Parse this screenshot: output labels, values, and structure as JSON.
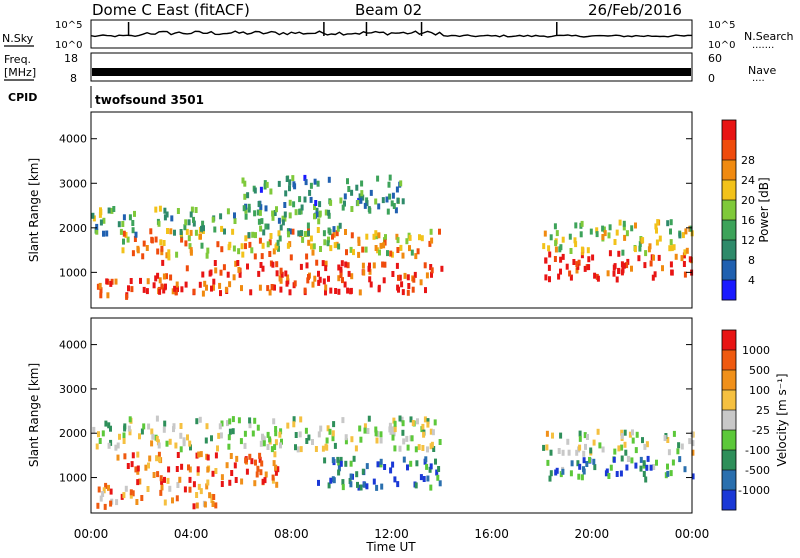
{
  "header": {
    "station": "Dome C East (fitACF)",
    "beam": "Beam 02",
    "date": "26/Feb/2016"
  },
  "noise_panel": {
    "left_label": "N.Sky",
    "right_label": "N.Search",
    "right_dots": "·······",
    "tick_top": "10^5",
    "tick_bottom": "10^0"
  },
  "freq_panel": {
    "left_label_1": "Freq.",
    "left_label_2": "[MHz]",
    "right_label": "Nave",
    "right_dots": "····",
    "left_tick_top": "18",
    "left_tick_bottom": "8",
    "right_tick_top": "60",
    "right_tick_bottom": "0"
  },
  "cpid_panel": {
    "label": "CPID",
    "value": "twofsound 3501"
  },
  "time_axis": {
    "label": "Time UT",
    "ticks": [
      "00:00",
      "04:00",
      "08:00",
      "12:00",
      "16:00",
      "20:00",
      "00:00"
    ]
  },
  "chart_data": [
    {
      "type": "heatmap",
      "quantity": "power",
      "ylabel": "Slant Range [km]",
      "yticks": [
        "1000",
        "2000",
        "3000",
        "4000"
      ],
      "ylim": [
        200,
        4600
      ],
      "xlim_hours": [
        0,
        24
      ],
      "colorbar_label": "Power [dB]",
      "colorbar_ticks": [
        "4",
        "8",
        "12",
        "16",
        "20",
        "24",
        "28"
      ],
      "colorscale": [
        "#1a1aff",
        "#2060b0",
        "#2e8a6a",
        "#3da35a",
        "#7fc93a",
        "#f2c21a",
        "#f08a10",
        "#ef4b0c",
        "#e81414"
      ],
      "echo_regions": [
        {
          "t": [
            0.2,
            4.5
          ],
          "range": [
            500,
            900
          ],
          "level": 0.85
        },
        {
          "t": [
            1.0,
            14.0
          ],
          "range": [
            1400,
            2000
          ],
          "level": 0.65
        },
        {
          "t": [
            2.5,
            14.0
          ],
          "range": [
            600,
            1300
          ],
          "level": 0.9
        },
        {
          "t": [
            0.0,
            10.0
          ],
          "range": [
            1900,
            2500
          ],
          "level": 0.4
        },
        {
          "t": [
            6.0,
            12.5
          ],
          "range": [
            2400,
            3200
          ],
          "level": 0.3
        },
        {
          "t": [
            18.0,
            24.0
          ],
          "range": [
            900,
            1500
          ],
          "level": 0.95
        },
        {
          "t": [
            18.0,
            24.0
          ],
          "range": [
            1500,
            2200
          ],
          "level": 0.55
        }
      ]
    },
    {
      "type": "heatmap",
      "quantity": "velocity",
      "ylabel": "Slant Range [km]",
      "yticks": [
        "1000",
        "2000",
        "3000",
        "4000"
      ],
      "ylim": [
        200,
        4600
      ],
      "xlim_hours": [
        0,
        24
      ],
      "colorbar_label": "Velocity [m s⁻¹]",
      "colorbar_ticks": [
        "1000",
        "500",
        "100",
        "25",
        "-25",
        "-100",
        "-500",
        "-1000"
      ],
      "colorscale": [
        "#1a38d6",
        "#2a6fae",
        "#2e8f5a",
        "#5cc83a",
        "#c8c8c8",
        "#f5c040",
        "#f0901a",
        "#ef5a10",
        "#e81414"
      ],
      "echo_regions": [
        {
          "t": [
            0.2,
            5.0
          ],
          "range": [
            400,
            900
          ],
          "level": 0.7
        },
        {
          "t": [
            1.0,
            7.5
          ],
          "range": [
            900,
            1600
          ],
          "level": 0.8
        },
        {
          "t": [
            0.0,
            14.0
          ],
          "range": [
            1700,
            2400
          ],
          "level": 0.45
        },
        {
          "t": [
            9.0,
            14.0
          ],
          "range": [
            800,
            1500
          ],
          "level": 0.2
        },
        {
          "t": [
            18.0,
            24.0
          ],
          "range": [
            1000,
            1500
          ],
          "level": 0.25
        },
        {
          "t": [
            18.0,
            24.0
          ],
          "range": [
            1600,
            2100
          ],
          "level": 0.45
        }
      ]
    }
  ]
}
